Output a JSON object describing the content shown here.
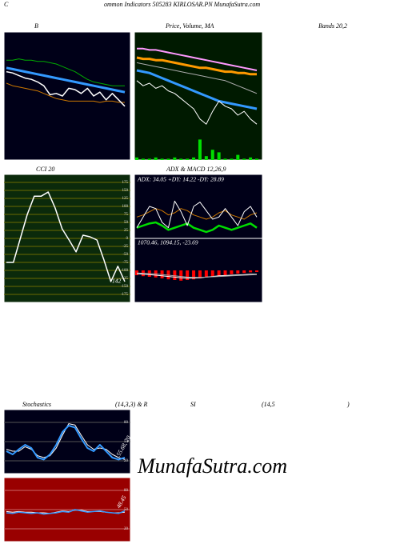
{
  "headers": [
    "C",
    "ommon  Indicators 505283 KIRLOSAR.PN  MunafaSutra.com",
    "B",
    "Price, Volume, MA",
    "Bands 20,2",
    "CCI 20",
    "ADX  & MACD 12,26,9",
    "Stochastics",
    "(14,3,3) & R",
    "SI",
    "(14,5",
    ")"
  ],
  "watermark": "MunafaSutra.com",
  "chart_data": [
    {
      "type": "line",
      "background": "#000018",
      "ylim": [
        0,
        100
      ],
      "series": [
        {
          "color": "#00aa00",
          "width": 1,
          "values": [
            78,
            78,
            79,
            78,
            78,
            77,
            77,
            76,
            75,
            73,
            71,
            69,
            66,
            63,
            61,
            60,
            59,
            58,
            58,
            58
          ]
        },
        {
          "color": "#3399ff",
          "width": 3,
          "values": [
            72,
            71,
            70,
            69,
            68,
            67,
            66,
            65,
            64,
            63,
            62,
            61,
            60,
            59,
            58,
            57,
            56,
            55,
            54,
            53
          ]
        },
        {
          "color": "#cc7700",
          "width": 1,
          "values": [
            60,
            58,
            57,
            56,
            55,
            54,
            52,
            50,
            48,
            47,
            46,
            46,
            46,
            46,
            46,
            45,
            46,
            46,
            45,
            45
          ]
        },
        {
          "color": "#ffffff",
          "width": 1.5,
          "values": [
            69,
            68,
            66,
            64,
            63,
            61,
            58,
            51,
            52,
            50,
            56,
            55,
            52,
            56,
            50,
            53,
            47,
            52,
            47,
            42
          ]
        }
      ]
    },
    {
      "type": "line",
      "background": "#001a00",
      "ylim": [
        0,
        100
      ],
      "series": [
        {
          "color": "#00dd00",
          "type": "bar",
          "values": [
            2,
            1,
            1,
            2,
            1,
            1,
            2,
            1,
            1,
            2,
            16,
            3,
            8,
            6,
            1,
            1,
            4,
            1,
            2,
            1
          ]
        },
        {
          "color": "#ff99ff",
          "width": 2,
          "values": [
            87,
            87,
            86,
            86,
            85,
            84,
            83,
            82,
            81,
            80,
            79,
            78,
            77,
            76,
            75,
            74,
            73,
            72,
            71,
            70
          ]
        },
        {
          "color": "#ff9900",
          "width": 3,
          "values": [
            80,
            79,
            79,
            78,
            78,
            77,
            76,
            75,
            74,
            73,
            72,
            72,
            71,
            70,
            69,
            69,
            68,
            68,
            67,
            67
          ]
        },
        {
          "color": "#aaaaaa",
          "width": 1,
          "values": [
            76,
            75,
            74,
            73,
            72,
            71,
            70,
            69,
            68,
            67,
            66,
            65,
            64,
            63,
            62,
            60,
            58,
            56,
            54,
            52
          ]
        },
        {
          "color": "#3399ff",
          "width": 3,
          "values": [
            70,
            69,
            68,
            66,
            64,
            62,
            60,
            58,
            56,
            54,
            52,
            50,
            48,
            46,
            45,
            44,
            43,
            42,
            41,
            40
          ]
        },
        {
          "color": "#ffffff",
          "width": 1,
          "values": [
            62,
            58,
            60,
            56,
            58,
            54,
            52,
            48,
            44,
            40,
            32,
            28,
            38,
            46,
            42,
            40,
            35,
            38,
            32,
            28
          ]
        }
      ]
    },
    {
      "type": "line",
      "background": "#0b2a0b",
      "grid_color": "#6b6b00",
      "ylim": [
        -200,
        200
      ],
      "yticks": [
        175,
        150,
        125,
        100,
        75,
        50,
        25,
        0,
        -25,
        -50,
        -75,
        -100,
        -125,
        -150,
        -175
      ],
      "annotation": "142",
      "series": [
        {
          "color": "#ffffff",
          "width": 1.5,
          "values": [
            -75,
            -75,
            0,
            75,
            132,
            132,
            145,
            95,
            30,
            -5,
            -42,
            10,
            5,
            -5,
            -67,
            -135,
            -87,
            -135
          ]
        }
      ]
    },
    {
      "type": "line",
      "background": "#000018",
      "ylim": [
        0,
        60
      ],
      "annotation": "ADX: 34.05 +DY: 14.22 -DY: 28.89",
      "series": [
        {
          "color": "#cc7700",
          "width": 1,
          "values": [
            20,
            22,
            25,
            28,
            26,
            22,
            24,
            28,
            26,
            22,
            20,
            18,
            20,
            24,
            26,
            22,
            20,
            18,
            22,
            24
          ]
        },
        {
          "color": "#00dd00",
          "width": 2.5,
          "values": [
            10,
            12,
            14,
            15,
            12,
            8,
            10,
            12,
            14,
            10,
            8,
            6,
            8,
            12,
            10,
            8,
            10,
            12,
            14,
            10
          ]
        },
        {
          "color": "#ffffff",
          "width": 1,
          "values": [
            10,
            20,
            30,
            28,
            15,
            10,
            35,
            25,
            12,
            30,
            34,
            26,
            18,
            20,
            28,
            20,
            12,
            25,
            30,
            20
          ]
        }
      ]
    },
    {
      "type": "line",
      "background": "#000018",
      "ylim": [
        -100,
        100
      ],
      "annotation": "1070.46,  1094.15,  -23.69",
      "series": [
        {
          "color": "#ff0000",
          "type": "bar",
          "values": [
            -15,
            -18,
            -20,
            -22,
            -25,
            -28,
            -30,
            -32,
            -30,
            -28,
            -25,
            -22,
            -20,
            -18,
            -15,
            -12,
            -10,
            -8,
            -6,
            -5
          ]
        },
        {
          "color": "#ffffff",
          "width": 1,
          "values": [
            -10,
            -12,
            -13,
            -15,
            -17,
            -19,
            -21,
            -23,
            -24,
            -24,
            -23,
            -21,
            -19,
            -17,
            -16,
            -15,
            -14,
            -13,
            -12,
            -12
          ]
        },
        {
          "color": "#aaaaaa",
          "width": 1,
          "values": [
            -8,
            -9,
            -10,
            -11,
            -13,
            -15,
            -17,
            -19,
            -21,
            -22,
            -22,
            -21,
            -20,
            -19,
            -18,
            -17,
            -16,
            -15,
            -14,
            -13
          ]
        }
      ]
    },
    {
      "type": "line",
      "background": "#000018",
      "grid_color": "#555555",
      "ylim": [
        0,
        100
      ],
      "yticks": [
        80,
        50,
        20
      ],
      "annotation": "55.68, 20",
      "series": [
        {
          "color": "#ffffff",
          "width": 1,
          "values": [
            38,
            35,
            35,
            42,
            38,
            28,
            25,
            28,
            40,
            60,
            78,
            76,
            60,
            45,
            38,
            40,
            38,
            30,
            25,
            22
          ]
        },
        {
          "color": "#3399ff",
          "width": 2,
          "values": [
            35,
            30,
            38,
            45,
            40,
            25,
            22,
            30,
            45,
            65,
            75,
            72,
            55,
            40,
            35,
            45,
            35,
            25,
            22,
            25
          ]
        }
      ]
    },
    {
      "type": "line",
      "background": "#990000",
      "grid_color": "#cc6666",
      "ylim": [
        0,
        100
      ],
      "yticks": [
        80,
        50,
        20
      ],
      "annotation": "48.45",
      "series": [
        {
          "color": "#ffffff",
          "width": 1,
          "values": [
            47,
            46,
            47,
            46,
            46,
            45,
            45,
            44,
            46,
            48,
            47,
            49,
            49,
            47,
            47,
            47,
            46,
            45,
            45,
            46
          ]
        },
        {
          "color": "#3399ff",
          "width": 1.5,
          "values": [
            45,
            44,
            46,
            45,
            44,
            45,
            43,
            44,
            45,
            47,
            46,
            50,
            48,
            46,
            47,
            48,
            46,
            45,
            44,
            48
          ]
        }
      ]
    }
  ]
}
